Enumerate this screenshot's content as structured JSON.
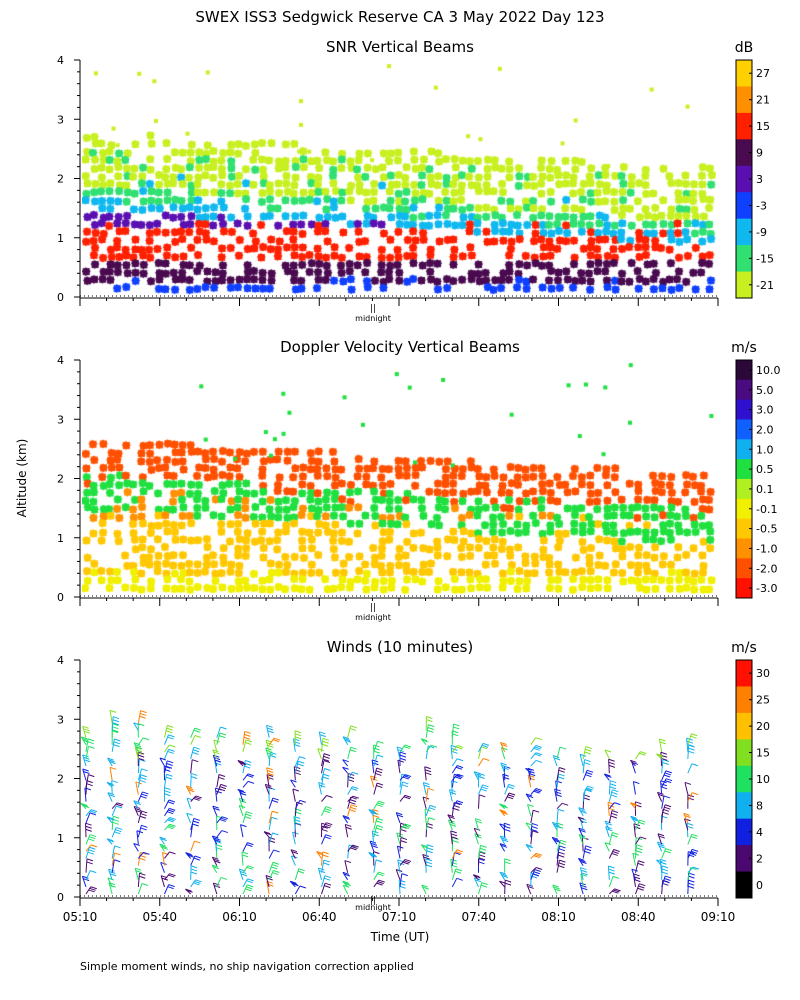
{
  "title": "SWEX ISS3 Sedgwick Reserve CA   3 May 2022 Day 123",
  "footnote": "Simple moment winds, no ship navigation correction applied",
  "shared_axes": {
    "ylabel": "Altitude (km)",
    "xlabel": "Time (UT)",
    "y_ticks": [
      "0",
      "1",
      "2",
      "3",
      "4"
    ],
    "ylim": [
      0,
      4
    ],
    "x_ticks": [
      "05:10",
      "05:40",
      "06:10",
      "06:40",
      "07:10",
      "07:40",
      "08:10",
      "08:40",
      "09:10"
    ],
    "midnight_label": "midnight",
    "midnight_mark": "||"
  },
  "chart_data": [
    {
      "type": "heatmap",
      "title": "SNR Vertical Beams",
      "colorbar_unit": "dB",
      "colorbar_ticks": [
        "27",
        "21",
        "15",
        "9",
        "3",
        "-3",
        "-9",
        "-15",
        "-21"
      ],
      "colorbar_colors": [
        "#ffd000",
        "#ff9000",
        "#ff2000",
        "#4a0a50",
        "#5a10b0",
        "#1040ff",
        "#10b8f0",
        "#30e070",
        "#c8f020"
      ],
      "ylim": [
        0,
        4
      ],
      "xlim": [
        "05:10",
        "09:10"
      ],
      "bands": [
        {
          "label": "3",
          "alt_bottom": 0.1,
          "alt_top": 0.35,
          "color": "#1040ff"
        },
        {
          "label": "9",
          "alt_bottom": 0.3,
          "alt_top": 0.7,
          "color": "#4a0a50"
        },
        {
          "label": "15",
          "alt_bottom": 0.7,
          "alt_top": 1.3,
          "color": "#ff2000"
        },
        {
          "label": "3",
          "alt_bottom": 1.2,
          "alt_top": 1.6,
          "color": "#5a10b0"
        },
        {
          "label": "-9",
          "alt_bottom": 1.5,
          "alt_top": 2.3,
          "color": "#10b8f0"
        },
        {
          "label": "-15",
          "alt_bottom": 1.7,
          "alt_top": 2.6,
          "color": "#30e070"
        },
        {
          "label": "-21",
          "alt_bottom": 1.9,
          "alt_top": 2.8,
          "color": "#c8f020"
        }
      ]
    },
    {
      "type": "heatmap",
      "title": "Doppler Velocity Vertical Beams",
      "colorbar_unit": "m/s",
      "colorbar_ticks": [
        "10.0",
        "5.0",
        "3.0",
        "2.0",
        "1.0",
        "0.5",
        "0.1",
        "-0.1",
        "-0.5",
        "-1.0",
        "-2.0",
        "-3.0"
      ],
      "colorbar_colors": [
        "#2a0838",
        "#4a0a80",
        "#3010d0",
        "#1060ff",
        "#10b0f0",
        "#20e040",
        "#b0f020",
        "#f0f000",
        "#ffc800",
        "#ff9000",
        "#ff5000",
        "#ff1000"
      ],
      "ylim": [
        0,
        4
      ],
      "xlim": [
        "05:10",
        "09:10"
      ],
      "bands": [
        {
          "label": "-0.1",
          "alt_bottom": 0.1,
          "alt_top": 0.5,
          "color": "#f0f000"
        },
        {
          "label": "-0.5",
          "alt_bottom": 0.4,
          "alt_top": 1.4,
          "color": "#ffc800"
        },
        {
          "label": "-1.0",
          "alt_bottom": 1.3,
          "alt_top": 2.0,
          "color": "#ff9000"
        },
        {
          "label": "-2.0",
          "alt_bottom": 1.9,
          "alt_top": 2.7,
          "color": "#ff5000"
        },
        {
          "label": "0.5",
          "alt_bottom": 1.5,
          "alt_top": 2.1,
          "color": "#20e040"
        }
      ]
    },
    {
      "type": "scatter",
      "title": "Winds (10 minutes)",
      "colorbar_unit": "m/s",
      "colorbar_ticks": [
        "30",
        "25",
        "20",
        "15",
        "10",
        "8",
        "4",
        "2",
        "0"
      ],
      "colorbar_colors": [
        "#ff1000",
        "#ff8000",
        "#ffc000",
        "#80e020",
        "#20e060",
        "#10b0f0",
        "#1020e0",
        "#4a0870",
        "#000000"
      ],
      "ylim": [
        0,
        4
      ],
      "xlim": [
        "05:10",
        "09:10"
      ],
      "profile_times": [
        "05:10",
        "05:20",
        "05:30",
        "05:40",
        "05:50",
        "06:00",
        "06:10",
        "06:20",
        "06:30",
        "06:40",
        "06:50",
        "07:00",
        "07:10",
        "07:20",
        "07:30",
        "07:40",
        "07:50",
        "08:00",
        "08:10",
        "08:20",
        "08:30",
        "08:40",
        "08:50",
        "09:00",
        "09:10"
      ]
    }
  ]
}
